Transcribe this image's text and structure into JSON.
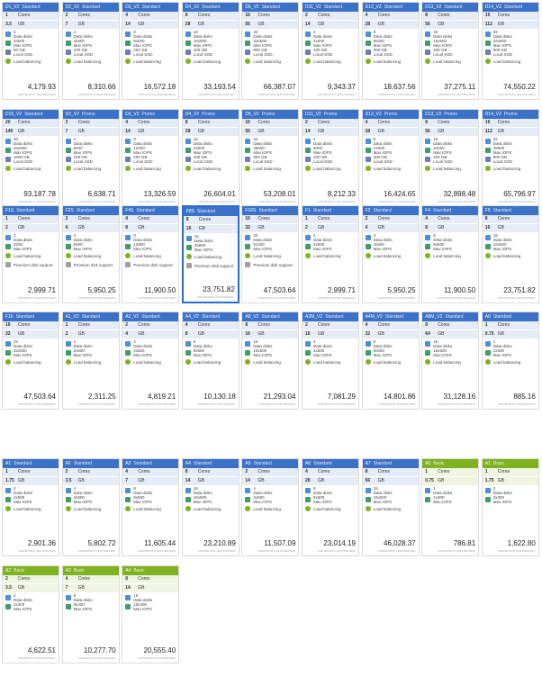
{
  "price_unit": "USD/MONTH (ESTIMATED)",
  "labels": {
    "cores": "Cores",
    "gb": "GB",
    "data_disks": "Data disks",
    "max_iops": "Max IOPS",
    "local_ssd": "Local SSD",
    "load_balancing": "Load balancing",
    "premium_disk": "Premium disk support"
  },
  "tiles": [
    {
      "name": "D1_V2",
      "tier": "Standard",
      "cores": "1",
      "gb": "3.5",
      "disks": "2",
      "iops": "2x500",
      "ssd": "50 GB",
      "lb": true,
      "prem": false,
      "price": "4,179.93"
    },
    {
      "name": "D2_V2",
      "tier": "Standard",
      "cores": "2",
      "gb": "7",
      "disks": "4",
      "iops": "4x500",
      "ssd": "100 GB",
      "lb": true,
      "prem": false,
      "price": "8,310.66"
    },
    {
      "name": "D3_V2",
      "tier": "Standard",
      "cores": "4",
      "gb": "14",
      "disks": "8",
      "iops": "8x500",
      "ssd": "200 GB",
      "lb": true,
      "prem": false,
      "price": "16,572.18"
    },
    {
      "name": "D4_V2",
      "tier": "Standard",
      "cores": "8",
      "gb": "28",
      "disks": "16",
      "iops": "16x500",
      "ssd": "400 GB",
      "lb": true,
      "prem": false,
      "price": "33,193.54"
    },
    {
      "name": "D5_V2",
      "tier": "Standard",
      "cores": "16",
      "gb": "56",
      "disks": "32",
      "iops": "32x500",
      "ssd": "800 GB",
      "lb": true,
      "prem": false,
      "price": "66,387.07"
    },
    {
      "name": "D11_V2",
      "tier": "Standard",
      "cores": "2",
      "gb": "14",
      "disks": "4",
      "iops": "4x500",
      "ssd": "100 GB",
      "lb": true,
      "prem": false,
      "price": "9,343.37"
    },
    {
      "name": "D12_V2",
      "tier": "Standard",
      "cores": "4",
      "gb": "28",
      "disks": "8",
      "iops": "8x500",
      "ssd": "200 GB",
      "lb": true,
      "prem": false,
      "price": "18,637.56"
    },
    {
      "name": "D13_V2",
      "tier": "Standard",
      "cores": "8",
      "gb": "56",
      "disks": "16",
      "iops": "16x500",
      "ssd": "400 GB",
      "lb": true,
      "prem": false,
      "price": "37,275.11"
    },
    {
      "name": "D14_V2",
      "tier": "Standard",
      "cores": "16",
      "gb": "112",
      "disks": "32",
      "iops": "32x500",
      "ssd": "800 GB",
      "lb": true,
      "prem": false,
      "price": "74,550.22"
    },
    {
      "name": "D15_V2",
      "tier": "Standard",
      "cores": "20",
      "gb": "140",
      "disks": "40",
      "iops": "40x500",
      "ssd": "1000 GB",
      "lb": true,
      "prem": false,
      "price": "93,187.78"
    },
    {
      "name": "D2_V2",
      "tier": "Promo",
      "cores": "2",
      "gb": "7",
      "disks": "4",
      "iops": "6000",
      "ssd": "100 GB",
      "lb": true,
      "prem": false,
      "price": "6,638.71"
    },
    {
      "name": "D3_V2",
      "tier": "Promo",
      "cores": "4",
      "gb": "14",
      "disks": "8",
      "iops": "12000",
      "ssd": "200 GB",
      "lb": true,
      "prem": false,
      "price": "13,326.59"
    },
    {
      "name": "D4_V2",
      "tier": "Promo",
      "cores": "8",
      "gb": "28",
      "disks": "16",
      "iops": "24000",
      "ssd": "400 GB",
      "lb": true,
      "prem": false,
      "price": "26,604.01"
    },
    {
      "name": "D5_V2",
      "tier": "Promo",
      "cores": "16",
      "gb": "56",
      "disks": "32",
      "iops": "48000",
      "ssd": "800 GB",
      "lb": true,
      "prem": false,
      "price": "53,208.01"
    },
    {
      "name": "D11_V2",
      "tier": "Promo",
      "cores": "2",
      "gb": "14",
      "disks": "4",
      "iops": "6000",
      "ssd": "100 GB",
      "lb": true,
      "prem": false,
      "price": "8,212.33"
    },
    {
      "name": "D12_V2",
      "tier": "Promo",
      "cores": "4",
      "gb": "28",
      "disks": "8",
      "iops": "12000",
      "ssd": "200 GB",
      "lb": true,
      "prem": false,
      "price": "16,424.65"
    },
    {
      "name": "D13_V2",
      "tier": "Promo",
      "cores": "8",
      "gb": "56",
      "disks": "16",
      "iops": "24000",
      "ssd": "400 GB",
      "lb": true,
      "prem": false,
      "price": "32,898.48"
    },
    {
      "name": "D14_V2",
      "tier": "Promo",
      "cores": "16",
      "gb": "112",
      "disks": "32",
      "iops": "48000",
      "ssd": "800 GB",
      "lb": true,
      "prem": false,
      "price": "65,796.97"
    },
    {
      "name": "F1S",
      "tier": "Standard",
      "cores": "1",
      "gb": "2",
      "disks": "2",
      "iops": "3200",
      "ssd": "",
      "lb": true,
      "prem": true,
      "price": "2,999.71"
    },
    {
      "name": "F2S",
      "tier": "Standard",
      "cores": "2",
      "gb": "4",
      "disks": "4",
      "iops": "6400",
      "ssd": "",
      "lb": true,
      "prem": true,
      "price": "5,950.25"
    },
    {
      "name": "F4S",
      "tier": "Standard",
      "cores": "4",
      "gb": "8",
      "disks": "8",
      "iops": "12800",
      "ssd": "",
      "lb": true,
      "prem": true,
      "price": "11,900.50"
    },
    {
      "name": "F8S",
      "tier": "Standard",
      "cores": "8",
      "gb": "16",
      "disks": "16",
      "iops": "25600",
      "ssd": "",
      "lb": true,
      "prem": true,
      "price": "23,751.82",
      "selected": true
    },
    {
      "name": "F16S",
      "tier": "Standard",
      "cores": "16",
      "gb": "32",
      "disks": "32",
      "iops": "51200",
      "ssd": "",
      "lb": true,
      "prem": true,
      "price": "47,503.64"
    },
    {
      "name": "F1",
      "tier": "Standard",
      "cores": "1",
      "gb": "2",
      "disks": "2",
      "iops": "2x500",
      "ssd": "",
      "lb": true,
      "prem": false,
      "price": "2,999.71"
    },
    {
      "name": "F2",
      "tier": "Standard",
      "cores": "2",
      "gb": "4",
      "disks": "4",
      "iops": "4x500",
      "ssd": "",
      "lb": true,
      "prem": false,
      "price": "5,950.25"
    },
    {
      "name": "F4",
      "tier": "Standard",
      "cores": "4",
      "gb": "8",
      "disks": "8",
      "iops": "8x500",
      "ssd": "",
      "lb": true,
      "prem": false,
      "price": "11,900.50"
    },
    {
      "name": "F8",
      "tier": "Standard",
      "cores": "8",
      "gb": "16",
      "disks": "16",
      "iops": "16x500",
      "ssd": "",
      "lb": true,
      "prem": false,
      "price": "23,751.82"
    },
    {
      "name": "F16",
      "tier": "Standard",
      "cores": "16",
      "gb": "32",
      "disks": "32",
      "iops": "32x500",
      "ssd": "",
      "lb": true,
      "prem": false,
      "price": "47,503.64"
    },
    {
      "name": "A1_V2",
      "tier": "Standard",
      "cores": "1",
      "gb": "2",
      "disks": "2",
      "iops": "2x500",
      "ssd": "",
      "lb": true,
      "prem": false,
      "price": "2,311.25"
    },
    {
      "name": "A2_V2",
      "tier": "Standard",
      "cores": "2",
      "gb": "4",
      "disks": "4",
      "iops": "4x500",
      "ssd": "",
      "lb": true,
      "prem": false,
      "price": "4,819.21"
    },
    {
      "name": "A4_V2",
      "tier": "Standard",
      "cores": "4",
      "gb": "8",
      "disks": "8",
      "iops": "8x500",
      "ssd": "",
      "lb": true,
      "prem": false,
      "price": "10,130.18"
    },
    {
      "name": "A8_V2",
      "tier": "Standard",
      "cores": "8",
      "gb": "16",
      "disks": "16",
      "iops": "16x500",
      "ssd": "",
      "lb": true,
      "prem": false,
      "price": "21,293.04"
    },
    {
      "name": "A2M_V2",
      "tier": "Standard",
      "cores": "2",
      "gb": "16",
      "disks": "4",
      "iops": "4x500",
      "ssd": "",
      "lb": true,
      "prem": false,
      "price": "7,081.29"
    },
    {
      "name": "A4M_V2",
      "tier": "Standard",
      "cores": "4",
      "gb": "32",
      "disks": "8",
      "iops": "8x500",
      "ssd": "",
      "lb": true,
      "prem": false,
      "price": "14,801.86"
    },
    {
      "name": "A8M_V2",
      "tier": "Standard",
      "cores": "8",
      "gb": "64",
      "disks": "16",
      "iops": "16x500",
      "ssd": "",
      "lb": true,
      "prem": false,
      "price": "31,128.16"
    },
    {
      "name": "A0",
      "tier": "Standard",
      "cores": "1",
      "gb": "0.75",
      "disks": "1",
      "iops": "1x500",
      "ssd": "",
      "lb": true,
      "prem": false,
      "price": "885.16"
    },
    {
      "name": "A1",
      "tier": "Standard",
      "cores": "1",
      "gb": "1.75",
      "disks": "2",
      "iops": "2x500",
      "ssd": "",
      "lb": true,
      "prem": false,
      "price": "2,901.36"
    },
    {
      "name": "A2",
      "tier": "Standard",
      "cores": "2",
      "gb": "3.5",
      "disks": "4",
      "iops": "4x500",
      "ssd": "",
      "lb": true,
      "prem": false,
      "price": "5,802.72"
    },
    {
      "name": "A3",
      "tier": "Standard",
      "cores": "4",
      "gb": "7",
      "disks": "8",
      "iops": "8x500",
      "ssd": "",
      "lb": true,
      "prem": false,
      "price": "11,605.44"
    },
    {
      "name": "A4",
      "tier": "Standard",
      "cores": "8",
      "gb": "14",
      "disks": "16",
      "iops": "16x500",
      "ssd": "",
      "lb": true,
      "prem": false,
      "price": "23,210.89"
    },
    {
      "name": "A5",
      "tier": "Standard",
      "cores": "2",
      "gb": "14",
      "disks": "4",
      "iops": "4x500",
      "ssd": "",
      "lb": true,
      "prem": false,
      "price": "11,507.09"
    },
    {
      "name": "A6",
      "tier": "Standard",
      "cores": "4",
      "gb": "28",
      "disks": "8",
      "iops": "8x500",
      "ssd": "",
      "lb": true,
      "prem": false,
      "price": "23,014.19"
    },
    {
      "name": "A7",
      "tier": "Standard",
      "cores": "8",
      "gb": "56",
      "disks": "16",
      "iops": "16x500",
      "ssd": "",
      "lb": true,
      "prem": false,
      "price": "46,028.37"
    },
    {
      "name": "A0",
      "tier": "Basic",
      "cores": "1",
      "gb": "0.75",
      "disks": "1",
      "iops": "1x300",
      "ssd": "",
      "lb": false,
      "prem": false,
      "price": "786.81"
    },
    {
      "name": "A1",
      "tier": "Basic",
      "cores": "1",
      "gb": "1.75",
      "disks": "2",
      "iops": "2x300",
      "ssd": "",
      "lb": false,
      "prem": false,
      "price": "1,622.80"
    },
    {
      "name": "A2",
      "tier": "Basic",
      "cores": "2",
      "gb": "3.5",
      "disks": "4",
      "iops": "4x300",
      "ssd": "",
      "lb": false,
      "prem": false,
      "price": "4,622.51"
    },
    {
      "name": "A3",
      "tier": "Basic",
      "cores": "4",
      "gb": "7",
      "disks": "8",
      "iops": "8x300",
      "ssd": "",
      "lb": false,
      "prem": false,
      "price": "10,277.70"
    },
    {
      "name": "A4",
      "tier": "Basic",
      "cores": "8",
      "gb": "14",
      "disks": "16",
      "iops": "16x300",
      "ssd": "",
      "lb": false,
      "prem": false,
      "price": "20,555.40"
    }
  ]
}
